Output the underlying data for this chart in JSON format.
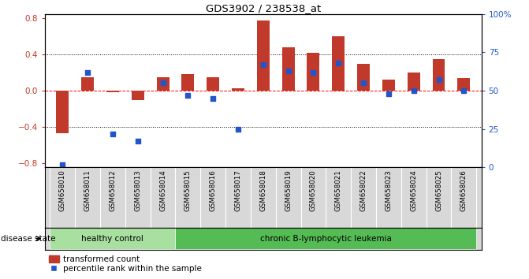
{
  "title": "GDS3902 / 238538_at",
  "samples": [
    "GSM658010",
    "GSM658011",
    "GSM658012",
    "GSM658013",
    "GSM658014",
    "GSM658015",
    "GSM658016",
    "GSM658017",
    "GSM658018",
    "GSM658019",
    "GSM658020",
    "GSM658021",
    "GSM658022",
    "GSM658023",
    "GSM658024",
    "GSM658025",
    "GSM658026"
  ],
  "bar_values": [
    -0.47,
    0.15,
    -0.02,
    -0.1,
    0.15,
    0.18,
    0.15,
    0.03,
    0.78,
    0.48,
    0.42,
    0.6,
    0.3,
    0.12,
    0.2,
    0.35,
    0.14
  ],
  "dot_values": [
    2,
    62,
    22,
    17,
    55,
    47,
    45,
    25,
    67,
    63,
    62,
    68,
    55,
    48,
    50,
    57,
    50
  ],
  "bar_color": "#C0392B",
  "dot_color": "#2255CC",
  "healthy_control_count": 5,
  "healthy_control_label": "healthy control",
  "leukemia_label": "chronic B-lymphocytic leukemia",
  "healthy_color": "#A8E0A0",
  "leukemia_color": "#55BB55",
  "disease_state_label": "disease state",
  "ylim_left": [
    -0.85,
    0.85
  ],
  "ylim_right": [
    0,
    100
  ],
  "yticks_left": [
    -0.8,
    -0.4,
    0.0,
    0.4,
    0.8
  ],
  "yticks_right": [
    0,
    25,
    50,
    75,
    100
  ],
  "ytick_labels_right": [
    "0",
    "25",
    "50",
    "75",
    "100%"
  ],
  "legend_bar_label": "transformed count",
  "legend_dot_label": "percentile rank within the sample",
  "bg_color": "#FFFFFF",
  "plot_bg_color": "#FFFFFF",
  "label_bg_color": "#D8D8D8"
}
